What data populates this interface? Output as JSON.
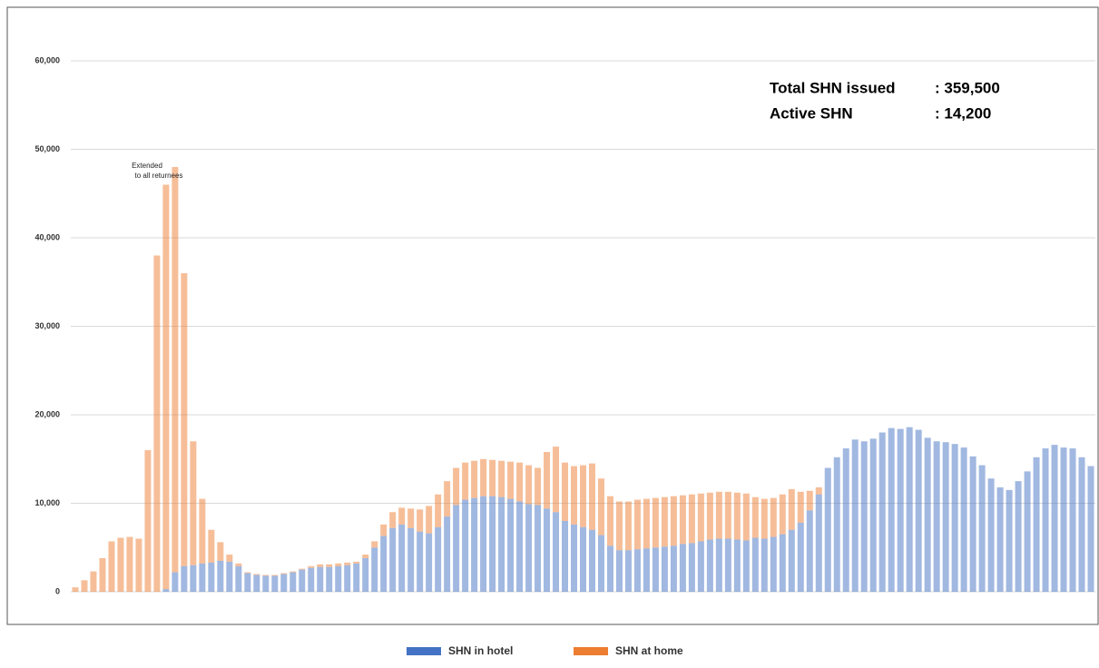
{
  "chart_data": {
    "type": "stacked-bar",
    "categories": [
      null,
      null,
      null,
      null,
      null,
      null,
      null,
      null,
      null,
      null,
      null,
      null,
      null,
      null,
      null,
      null,
      null,
      null,
      null,
      null,
      null,
      null,
      null,
      null,
      null,
      null,
      null,
      null,
      null,
      null,
      null,
      null,
      null,
      null,
      null,
      null,
      null,
      null,
      null,
      null,
      null,
      null,
      null,
      null,
      null,
      null,
      null,
      null,
      null,
      null,
      null,
      null,
      null,
      null,
      null,
      null,
      null,
      null,
      null,
      null,
      null,
      null,
      null,
      null,
      null,
      null,
      null,
      null,
      null,
      null,
      null,
      null,
      null,
      null,
      null,
      null,
      null,
      null,
      null,
      null,
      null,
      null,
      null,
      null,
      null,
      null,
      null,
      null,
      null,
      null,
      null,
      null,
      null,
      null,
      null,
      null,
      null,
      null,
      null,
      null,
      null,
      null,
      null,
      null,
      null,
      null,
      null,
      null,
      null,
      null,
      null,
      null,
      null
    ],
    "series": [
      {
        "name": "SHN in hotel",
        "color": "#4472c4",
        "values": [
          0,
          0,
          0,
          0,
          0,
          0,
          0,
          0,
          0,
          0,
          300,
          2200,
          2900,
          3000,
          3200,
          3300,
          3500,
          3400,
          2900,
          2100,
          1900,
          1800,
          1800,
          2000,
          2200,
          2500,
          2700,
          2800,
          2800,
          2900,
          3000,
          3200,
          3800,
          5000,
          6300,
          7200,
          7600,
          7200,
          6800,
          6600,
          7300,
          8500,
          9800,
          10400,
          10600,
          10800,
          10800,
          10700,
          10500,
          10200,
          9900,
          9800,
          9400,
          9000,
          8000,
          7600,
          7300,
          7000,
          6400,
          5200,
          4700,
          4700,
          4800,
          4900,
          5000,
          5100,
          5200,
          5400,
          5500,
          5700,
          5900,
          6000,
          6000,
          5900,
          5800,
          6100,
          6000,
          6200,
          6500,
          7000,
          7800,
          9200,
          11000,
          14000,
          15200,
          16200,
          17200,
          17000,
          17300,
          18000,
          18500,
          18400,
          18600,
          18300,
          17400,
          17000,
          16900,
          16700,
          16300,
          15300,
          14300,
          12800,
          11800,
          11500,
          12500,
          13600,
          15200,
          16200,
          16600,
          16300,
          16200,
          15200,
          14200
        ]
      },
      {
        "name": "SHN at home",
        "color": "#ed7d31",
        "values": [
          500,
          1300,
          2300,
          3800,
          5700,
          6100,
          6200,
          6000,
          16000,
          38000,
          45700,
          45800,
          33100,
          14000,
          7300,
          3700,
          2100,
          800,
          300,
          100,
          100,
          100,
          100,
          100,
          100,
          100,
          200,
          300,
          300,
          300,
          300,
          200,
          400,
          700,
          1300,
          1800,
          1900,
          2200,
          2500,
          3100,
          3700,
          4000,
          4200,
          4200,
          4200,
          4200,
          4100,
          4100,
          4200,
          4400,
          4400,
          4200,
          6400,
          7400,
          6600,
          6600,
          7000,
          7500,
          6400,
          5600,
          5500,
          5500,
          5600,
          5600,
          5600,
          5600,
          5600,
          5500,
          5500,
          5400,
          5300,
          5300,
          5300,
          5300,
          5300,
          4600,
          4500,
          4400,
          4500,
          4600,
          3500,
          2200,
          800,
          0,
          0,
          0,
          0,
          0,
          0,
          0,
          0,
          0,
          0,
          0,
          0,
          0,
          0,
          0,
          0,
          0,
          0,
          0,
          0,
          0,
          0,
          0,
          0,
          0,
          0,
          0,
          0,
          0,
          0
        ]
      }
    ],
    "ylim": [
      0,
      60000
    ],
    "yticks": [
      0,
      {
        "value": 10000,
        "label": "10,000"
      },
      {
        "value": 20000,
        "label": "20,000"
      },
      {
        "value": 30000,
        "label": "30,000"
      },
      {
        "value": 40000,
        "label": "40,000"
      },
      {
        "value": 50000,
        "label": "50,000"
      },
      {
        "value": 60000,
        "label": "60,000"
      }
    ],
    "grid": true,
    "annotations": [
      "Extended",
      "to all returnees"
    ],
    "stats": [
      {
        "label": "Total SHN issued",
        "value": ": 359,500"
      },
      {
        "label": "Active SHN",
        "value": ": 14,200"
      }
    ]
  }
}
